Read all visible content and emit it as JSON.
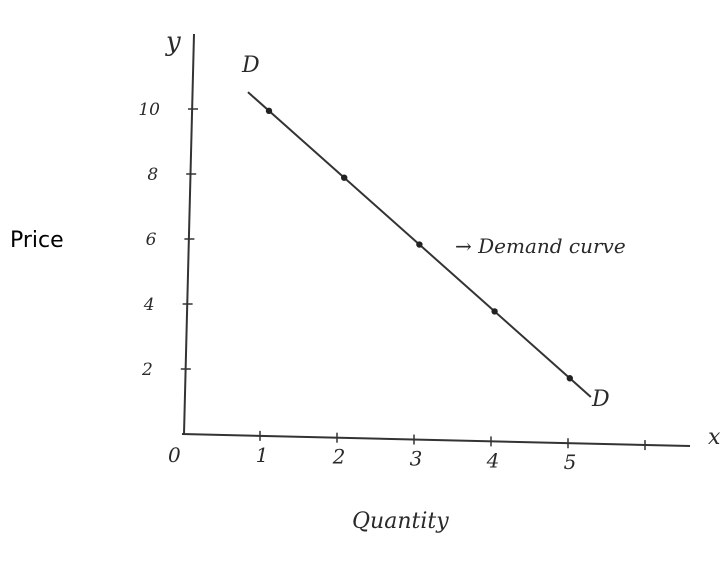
{
  "chart_data": {
    "type": "line",
    "xlabel": "Quantity",
    "ylabel": "Price",
    "x_axis_letter": "x",
    "y_axis_letter": "y",
    "origin_label": "0",
    "x_ticks": [
      "1",
      "2",
      "3",
      "4",
      "5"
    ],
    "y_ticks": [
      "2",
      "4",
      "6",
      "8",
      "10"
    ],
    "xlim": [
      0,
      6
    ],
    "ylim": [
      0,
      11
    ],
    "series": [
      {
        "x": [
          1,
          2,
          3,
          4,
          5
        ],
        "y": [
          10,
          8,
          6,
          4,
          2
        ]
      }
    ],
    "line_labels": [
      "D",
      "D"
    ],
    "annotation": "→ Demand curve",
    "grid": false,
    "legend": "none"
  }
}
